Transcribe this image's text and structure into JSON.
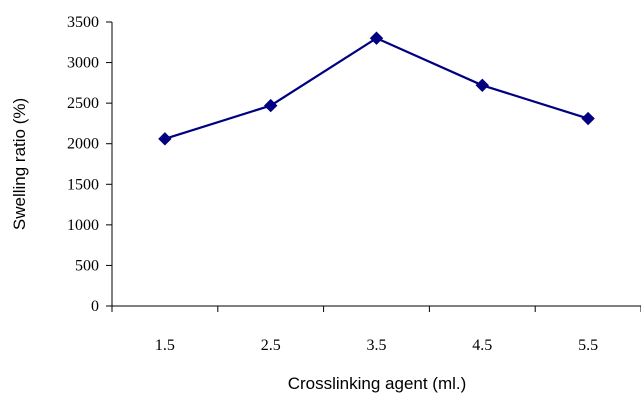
{
  "chart_data": {
    "type": "line",
    "xlabel": "Crosslinking agent (ml.)",
    "ylabel": "Swelling ratio (%)",
    "categories": [
      "1.5",
      "2.5",
      "3.5",
      "4.5",
      "5.5"
    ],
    "series": [
      {
        "values": [
          2060,
          2470,
          3300,
          2720,
          2310
        ],
        "color": "#000080",
        "marker": "diamond"
      }
    ],
    "ylim": [
      0,
      3500
    ],
    "yticks": [
      "0",
      "500",
      "1000",
      "1500",
      "2000",
      "2500",
      "3000",
      "3500"
    ],
    "grid": false,
    "legend": "none"
  }
}
